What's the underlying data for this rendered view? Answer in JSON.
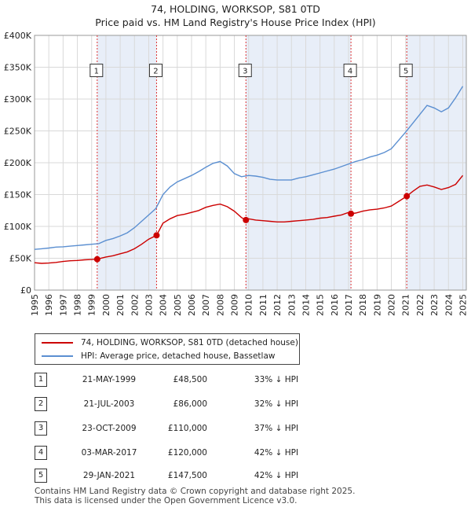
{
  "title_line1": "74, HOLDING, WORKSOP, S81 0TD",
  "title_line2": "Price paid vs. HM Land Registry's House Price Index (HPI)",
  "legend": {
    "property": "74, HOLDING, WORKSOP, S81 0TD (detached house)",
    "hpi": "HPI: Average price, detached house, Bassetlaw"
  },
  "sales": [
    {
      "id": "1",
      "date": "21-MAY-1999",
      "price": "£48,500",
      "hpi": "33% ↓ HPI"
    },
    {
      "id": "2",
      "date": "21-JUL-2003",
      "price": "£86,000",
      "hpi": "32% ↓ HPI"
    },
    {
      "id": "3",
      "date": "23-OCT-2009",
      "price": "£110,000",
      "hpi": "37% ↓ HPI"
    },
    {
      "id": "4",
      "date": "03-MAR-2017",
      "price": "£120,000",
      "hpi": "42% ↓ HPI"
    },
    {
      "id": "5",
      "date": "29-JAN-2021",
      "price": "£147,500",
      "hpi": "42% ↓ HPI"
    }
  ],
  "footer_line1": "Contains HM Land Registry data © Crown copyright and database right 2025.",
  "footer_line2": "This data is licensed under the Open Government Licence v3.0.",
  "colors": {
    "property": "#cc0000",
    "hpi": "#5b8fd1",
    "shade": "#e8eef8",
    "vline": "#dd3333"
  },
  "chart_data": {
    "type": "line",
    "title": "74, HOLDING, WORKSOP, S81 0TD",
    "subtitle": "Price paid vs. HM Land Registry's House Price Index (HPI)",
    "xlim": [
      1995,
      2025.25
    ],
    "ylim": [
      0,
      400000
    ],
    "yticks": [
      0,
      50000,
      100000,
      150000,
      200000,
      250000,
      300000,
      350000,
      400000
    ],
    "ytick_labels": [
      "£0",
      "£50K",
      "£100K",
      "£150K",
      "£200K",
      "£250K",
      "£300K",
      "£350K",
      "£400K"
    ],
    "xticks": [
      1995,
      1996,
      1997,
      1998,
      1999,
      2000,
      2001,
      2002,
      2003,
      2004,
      2005,
      2006,
      2007,
      2008,
      2009,
      2010,
      2011,
      2012,
      2013,
      2014,
      2015,
      2016,
      2017,
      2018,
      2019,
      2020,
      2021,
      2022,
      2023,
      2024,
      2025
    ],
    "grid": true,
    "legend_position": "below",
    "sale_markers": [
      {
        "label": "1",
        "x": 1999.39,
        "y": 48500
      },
      {
        "label": "2",
        "x": 2003.55,
        "y": 86000
      },
      {
        "label": "3",
        "x": 2009.81,
        "y": 110000
      },
      {
        "label": "4",
        "x": 2017.17,
        "y": 120000
      },
      {
        "label": "5",
        "x": 2021.08,
        "y": 147500
      }
    ],
    "shaded_periods": [
      [
        1999.39,
        2003.55
      ],
      [
        2009.81,
        2017.17
      ],
      [
        2021.08,
        2025.25
      ]
    ],
    "series": [
      {
        "name": "74, HOLDING, WORKSOP, S81 0TD (detached house)",
        "x": [
          1995.0,
          1995.5,
          1996.0,
          1996.5,
          1997.0,
          1997.5,
          1998.0,
          1998.5,
          1999.0,
          1999.39,
          2000.0,
          2000.5,
          2001.0,
          2001.5,
          2002.0,
          2002.5,
          2003.0,
          2003.55,
          2004.0,
          2004.5,
          2005.0,
          2005.5,
          2006.0,
          2006.5,
          2007.0,
          2007.5,
          2008.0,
          2008.5,
          2009.0,
          2009.5,
          2009.81,
          2010.0,
          2010.5,
          2011.0,
          2011.5,
          2012.0,
          2012.5,
          2013.0,
          2013.5,
          2014.0,
          2014.5,
          2015.0,
          2015.5,
          2016.0,
          2016.5,
          2017.0,
          2017.17,
          2017.5,
          2018.0,
          2018.5,
          2019.0,
          2019.5,
          2020.0,
          2020.5,
          2021.08,
          2021.5,
          2022.0,
          2022.5,
          2023.0,
          2023.5,
          2024.0,
          2024.5,
          2025.0
        ],
        "y": [
          43000,
          42000,
          42500,
          43500,
          45000,
          46000,
          46500,
          47500,
          48000,
          48500,
          52000,
          54000,
          57000,
          60000,
          65000,
          72000,
          80000,
          86000,
          105000,
          112000,
          117000,
          119000,
          122000,
          125000,
          130000,
          133000,
          135000,
          131000,
          124000,
          114000,
          110000,
          112000,
          110000,
          109000,
          108000,
          107000,
          107000,
          108000,
          109000,
          110000,
          111000,
          113000,
          114000,
          116000,
          118000,
          122000,
          120000,
          121000,
          124000,
          126000,
          127000,
          129000,
          132000,
          139000,
          147500,
          155000,
          163000,
          165000,
          162000,
          158000,
          161000,
          166000,
          180000
        ]
      },
      {
        "name": "HPI: Average price, detached house, Bassetlaw",
        "x": [
          1995.0,
          1995.5,
          1996.0,
          1996.5,
          1997.0,
          1997.5,
          1998.0,
          1998.5,
          1999.0,
          1999.5,
          2000.0,
          2000.5,
          2001.0,
          2001.5,
          2002.0,
          2002.5,
          2003.0,
          2003.5,
          2004.0,
          2004.5,
          2005.0,
          2005.5,
          2006.0,
          2006.5,
          2007.0,
          2007.5,
          2008.0,
          2008.5,
          2009.0,
          2009.5,
          2010.0,
          2010.5,
          2011.0,
          2011.5,
          2012.0,
          2012.5,
          2013.0,
          2013.5,
          2014.0,
          2014.5,
          2015.0,
          2015.5,
          2016.0,
          2016.5,
          2017.0,
          2017.5,
          2018.0,
          2018.5,
          2019.0,
          2019.5,
          2020.0,
          2020.5,
          2021.0,
          2021.5,
          2022.0,
          2022.5,
          2023.0,
          2023.5,
          2024.0,
          2024.5,
          2025.0
        ],
        "y": [
          64000,
          65000,
          66000,
          67500,
          68000,
          69000,
          70000,
          71000,
          72000,
          73000,
          78000,
          81000,
          85000,
          90000,
          98000,
          108000,
          118000,
          128000,
          150000,
          162000,
          170000,
          175000,
          180000,
          186000,
          193000,
          199000,
          202000,
          195000,
          183000,
          178000,
          180000,
          179000,
          177000,
          174000,
          173000,
          173000,
          173000,
          176000,
          178000,
          181000,
          184000,
          187000,
          190000,
          194000,
          198000,
          202000,
          205000,
          209000,
          212000,
          216000,
          222000,
          235000,
          248000,
          262000,
          276000,
          290000,
          286000,
          280000,
          286000,
          302000,
          320000
        ]
      }
    ]
  }
}
